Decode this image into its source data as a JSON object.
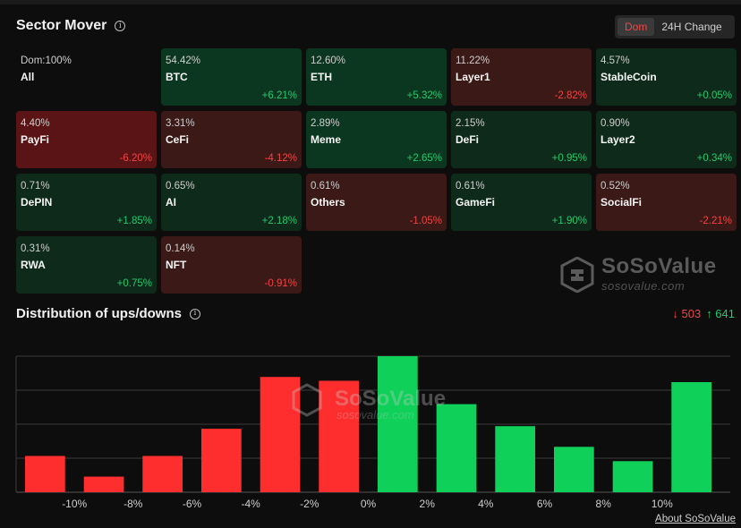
{
  "header": {
    "title": "Sector Mover"
  },
  "toggle": {
    "options": [
      "Dom",
      "24H Change"
    ],
    "selected": "Dom"
  },
  "sectors": [
    {
      "dom": "Dom:100%",
      "name": "All",
      "change": "",
      "tone": "neutral"
    },
    {
      "dom": "54.42%",
      "name": "BTC",
      "change": "+6.21%",
      "tone": "up-strong"
    },
    {
      "dom": "12.60%",
      "name": "ETH",
      "change": "+5.32%",
      "tone": "up-strong"
    },
    {
      "dom": "11.22%",
      "name": "Layer1",
      "change": "-2.82%",
      "tone": "down-light"
    },
    {
      "dom": "4.57%",
      "name": "StableCoin",
      "change": "+0.05%",
      "tone": "up-light"
    },
    {
      "dom": "4.40%",
      "name": "PayFi",
      "change": "-6.20%",
      "tone": "down-strong"
    },
    {
      "dom": "3.31%",
      "name": "CeFi",
      "change": "-4.12%",
      "tone": "down-light"
    },
    {
      "dom": "2.89%",
      "name": "Meme",
      "change": "+2.65%",
      "tone": "up-strong"
    },
    {
      "dom": "2.15%",
      "name": "DeFi",
      "change": "+0.95%",
      "tone": "up-light"
    },
    {
      "dom": "0.90%",
      "name": "Layer2",
      "change": "+0.34%",
      "tone": "up-light"
    },
    {
      "dom": "0.71%",
      "name": "DePIN",
      "change": "+1.85%",
      "tone": "up-light"
    },
    {
      "dom": "0.65%",
      "name": "AI",
      "change": "+2.18%",
      "tone": "up-light"
    },
    {
      "dom": "0.61%",
      "name": "Others",
      "change": "-1.05%",
      "tone": "down-light"
    },
    {
      "dom": "0.61%",
      "name": "GameFi",
      "change": "+1.90%",
      "tone": "up-light"
    },
    {
      "dom": "0.52%",
      "name": "SocialFi",
      "change": "-2.21%",
      "tone": "down-light"
    },
    {
      "dom": "0.31%",
      "name": "RWA",
      "change": "+0.75%",
      "tone": "up-light"
    },
    {
      "dom": "0.14%",
      "name": "NFT",
      "change": "-0.91%",
      "tone": "down-light"
    }
  ],
  "watermark": {
    "name": "SoSoValue",
    "url": "sosovalue.com"
  },
  "distribution": {
    "title": "Distribution of ups/downs",
    "down_count": "↓ 503",
    "up_count": "↑ 641"
  },
  "chart_data": {
    "type": "bar",
    "x_tick_labels": [
      "-10%",
      "-8%",
      "-6%",
      "-4%",
      "-2%",
      "0%",
      "2%",
      "4%",
      "6%",
      "8%",
      "10%"
    ],
    "values": [
      28,
      12,
      28,
      49,
      89,
      86,
      105,
      68,
      51,
      35,
      24,
      85
    ],
    "bar_colors": [
      "#ff2e2e",
      "#ff2e2e",
      "#ff2e2e",
      "#ff2e2e",
      "#ff2e2e",
      "#ff2e2e",
      "#0fd15a",
      "#0fd15a",
      "#0fd15a",
      "#0fd15a",
      "#0fd15a",
      "#0fd15a"
    ],
    "ylim": [
      0,
      105
    ],
    "grid": true
  },
  "footer": {
    "about_link": "About SoSoValue"
  },
  "colors": {
    "up": "#28c76f",
    "down": "#f04545",
    "bar_up": "#0fd15a",
    "bar_down": "#ff2e2e"
  }
}
